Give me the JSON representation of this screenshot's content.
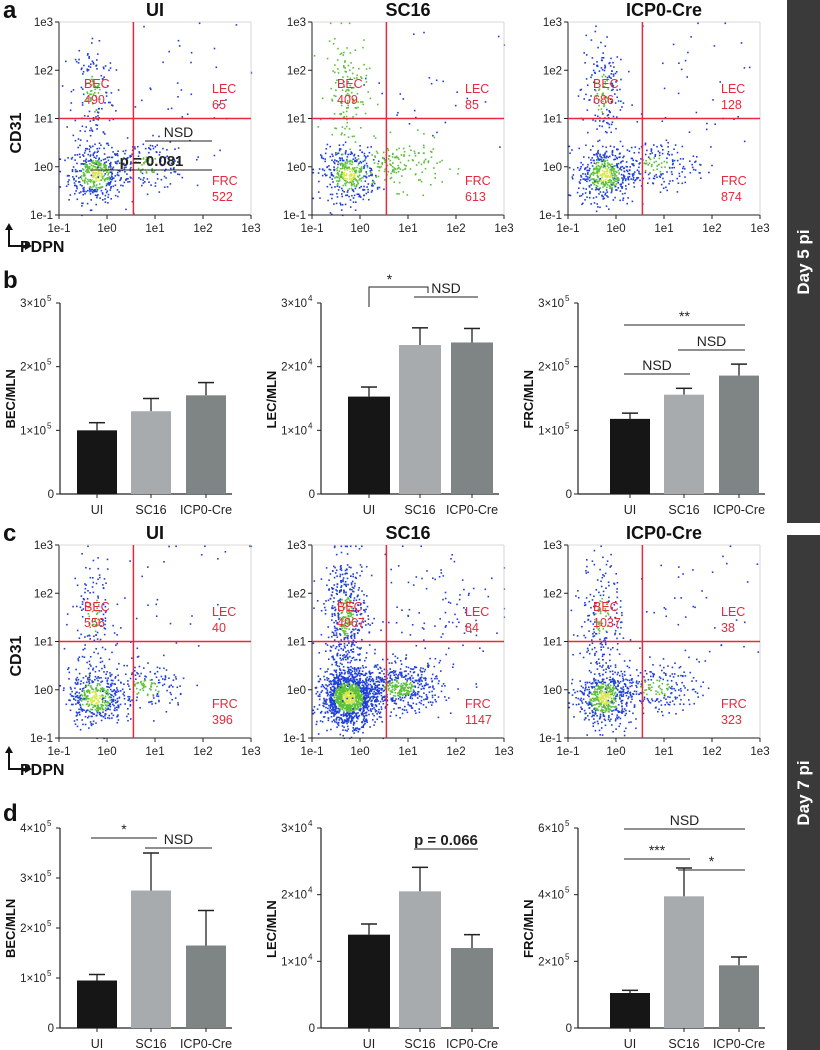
{
  "panels": {
    "a": "a",
    "b": "b",
    "c": "c",
    "d": "d"
  },
  "side_labels": {
    "top": "Day 5 pi",
    "bottom": "Day 7 pi"
  },
  "colors": {
    "gate": "#e8283c",
    "dot_blue": "#1f3fd8",
    "dot_green": "#5bbf3a",
    "dot_core": "#d8e84a",
    "bar_ui": "#161616",
    "bar_sc16": "#a7abad",
    "bar_icp0": "#7f8485",
    "side": "#3a3a3a"
  },
  "chart_data": [
    {
      "type": "scatter",
      "title": "UI",
      "xlabel": "PDPN",
      "ylabel": "CD31",
      "scale": "log",
      "ticks": [
        "1e-1",
        "1e0",
        "1e1",
        "1e2",
        "1e3"
      ],
      "quadrants": {
        "BEC": {
          "name": "BEC",
          "count": "490"
        },
        "LEC": {
          "name": "LEC",
          "count": "65"
        },
        "FRC": {
          "name": "FRC",
          "count": "522"
        }
      }
    },
    {
      "type": "scatter",
      "title": "SC16",
      "xlabel": "",
      "ylabel": "",
      "scale": "log",
      "ticks": [
        "1e-1",
        "1e0",
        "1e1",
        "1e2",
        "1e3"
      ],
      "quadrants": {
        "BEC": {
          "name": "BEC",
          "count": "409"
        },
        "LEC": {
          "name": "LEC",
          "count": "85"
        },
        "FRC": {
          "name": "FRC",
          "count": "613"
        }
      }
    },
    {
      "type": "scatter",
      "title": "ICP0-Cre",
      "xlabel": "",
      "ylabel": "",
      "scale": "log",
      "ticks": [
        "1e-1",
        "1e0",
        "1e1",
        "1e2",
        "1e3"
      ],
      "quadrants": {
        "BEC": {
          "name": "BEC",
          "count": "686"
        },
        "LEC": {
          "name": "LEC",
          "count": "128"
        },
        "FRC": {
          "name": "FRC",
          "count": "874"
        }
      }
    },
    {
      "type": "bar",
      "ylabel": "BEC/MLN",
      "categories": [
        "UI",
        "SC16",
        "ICP0-Cre"
      ],
      "values": [
        100000,
        130000,
        155000
      ],
      "errors": [
        12000,
        20000,
        20000
      ],
      "ylim": [
        0,
        300000
      ],
      "yticks": [
        {
          "v": 100000,
          "t": "1×10",
          "e": "5"
        },
        {
          "v": 200000,
          "t": "2×10",
          "e": "5"
        },
        {
          "v": 300000,
          "t": "3×10",
          "e": "5"
        }
      ],
      "annotations": [
        {
          "text": "p = 0.081",
          "i": 0,
          "j": 2,
          "y": 170,
          "bold": true,
          "pstyle": true
        },
        {
          "text": "NSD",
          "i": 1,
          "j": 2,
          "y": 141,
          "bold": false
        }
      ]
    },
    {
      "type": "bar",
      "ylabel": "LEC/MLN",
      "categories": [
        "UI",
        "SC16",
        "ICP0-Cre"
      ],
      "values": [
        15300,
        23400,
        23800
      ],
      "errors": [
        1500,
        2700,
        2200
      ],
      "ylim": [
        0,
        30000
      ],
      "yticks": [
        {
          "v": 10000,
          "t": "1×10",
          "e": "4"
        },
        {
          "v": 20000,
          "t": "2×10",
          "e": "4"
        },
        {
          "v": 30000,
          "t": "3×10",
          "e": "4"
        }
      ],
      "annotations": [
        {
          "text": "*",
          "i": 0,
          "j": 2,
          "y": 287,
          "bold": false,
          "bracket": true
        },
        {
          "text": "NSD",
          "i": 1,
          "j": 2,
          "y": 297,
          "bold": false
        }
      ]
    },
    {
      "type": "bar",
      "ylabel": "FRC/MLN",
      "categories": [
        "UI",
        "SC16",
        "ICP0-Cre"
      ],
      "values": [
        118000,
        156000,
        186000
      ],
      "errors": [
        9000,
        10000,
        18000
      ],
      "ylim": [
        0,
        300000
      ],
      "yticks": [
        {
          "v": 100000,
          "t": "1×10",
          "e": "5"
        },
        {
          "v": 200000,
          "t": "2×10",
          "e": "5"
        },
        {
          "v": 300000,
          "t": "3×10",
          "e": "5"
        }
      ],
      "annotations": [
        {
          "text": "**",
          "i": 0,
          "j": 2,
          "y": 325,
          "bold": false
        },
        {
          "text": "NSD",
          "i": 0,
          "j": 1,
          "y": 374,
          "bold": false
        },
        {
          "text": "NSD",
          "i": 1,
          "j": 2,
          "y": 350,
          "bold": false
        }
      ]
    },
    {
      "type": "scatter",
      "title": "UI",
      "xlabel": "PDPN",
      "ylabel": "CD31",
      "scale": "log",
      "ticks": [
        "1e-1",
        "1e0",
        "1e1",
        "1e2",
        "1e3"
      ],
      "quadrants": {
        "BEC": {
          "name": "BEC",
          "count": "556"
        },
        "LEC": {
          "name": "LEC",
          "count": "40"
        },
        "FRC": {
          "name": "FRC",
          "count": "396"
        }
      }
    },
    {
      "type": "scatter",
      "title": "SC16",
      "xlabel": "",
      "ylabel": "",
      "scale": "log",
      "ticks": [
        "1e-1",
        "1e0",
        "1e1",
        "1e2",
        "1e3"
      ],
      "quadrants": {
        "BEC": {
          "name": "BEC",
          "count": "4967"
        },
        "LEC": {
          "name": "LEC",
          "count": "84"
        },
        "FRC": {
          "name": "FRC",
          "count": "1147"
        }
      }
    },
    {
      "type": "scatter",
      "title": "ICP0-Cre",
      "xlabel": "",
      "ylabel": "",
      "scale": "log",
      "ticks": [
        "1e-1",
        "1e0",
        "1e1",
        "1e2",
        "1e3"
      ],
      "quadrants": {
        "BEC": {
          "name": "BEC",
          "count": "1037"
        },
        "LEC": {
          "name": "LEC",
          "count": "38"
        },
        "FRC": {
          "name": "FRC",
          "count": "323"
        }
      }
    },
    {
      "type": "bar",
      "ylabel": "BEC/MLN",
      "categories": [
        "UI",
        "SC16",
        "ICP0-Cre"
      ],
      "values": [
        95000,
        275000,
        165000
      ],
      "errors": [
        12000,
        75000,
        70000
      ],
      "ylim": [
        0,
        400000
      ],
      "yticks": [
        {
          "v": 100000,
          "t": "1×10",
          "e": "5"
        },
        {
          "v": 200000,
          "t": "2×10",
          "e": "5"
        },
        {
          "v": 300000,
          "t": "3×10",
          "e": "5"
        },
        {
          "v": 400000,
          "t": "4×10",
          "e": "5"
        }
      ],
      "annotations": [
        {
          "text": "*",
          "i": 0,
          "j": 1,
          "y": 838,
          "bold": false
        },
        {
          "text": "NSD",
          "i": 1,
          "j": 2,
          "y": 848,
          "bold": false
        }
      ]
    },
    {
      "type": "bar",
      "ylabel": "LEC/MLN",
      "categories": [
        "UI",
        "SC16",
        "ICP0-Cre"
      ],
      "values": [
        14000,
        20500,
        12000
      ],
      "errors": [
        1600,
        3600,
        2000
      ],
      "ylim": [
        0,
        30000
      ],
      "yticks": [
        {
          "v": 10000,
          "t": "1×10",
          "e": "4"
        },
        {
          "v": 20000,
          "t": "2×10",
          "e": "4"
        },
        {
          "v": 30000,
          "t": "3×10",
          "e": "4"
        }
      ],
      "annotations": [
        {
          "text": "p = 0.066",
          "i": 1,
          "j": 2,
          "y": 849,
          "bold": true,
          "pstyle": true
        }
      ]
    },
    {
      "type": "bar",
      "ylabel": "FRC/MLN",
      "categories": [
        "UI",
        "SC16",
        "ICP0-Cre"
      ],
      "values": [
        105000,
        395000,
        188000
      ],
      "errors": [
        8000,
        85000,
        25000
      ],
      "ylim": [
        0,
        600000
      ],
      "yticks": [
        {
          "v": 200000,
          "t": "2×10",
          "e": "5"
        },
        {
          "v": 400000,
          "t": "4×10",
          "e": "5"
        },
        {
          "v": 600000,
          "t": "6×10",
          "e": "5"
        }
      ],
      "annotations": [
        {
          "text": "NSD",
          "i": 0,
          "j": 2,
          "y": 829,
          "bold": false
        },
        {
          "text": "***",
          "i": 0,
          "j": 1,
          "y": 859,
          "bold": false
        },
        {
          "text": "*",
          "i": 1,
          "j": 2,
          "y": 870,
          "bold": false
        }
      ]
    }
  ]
}
